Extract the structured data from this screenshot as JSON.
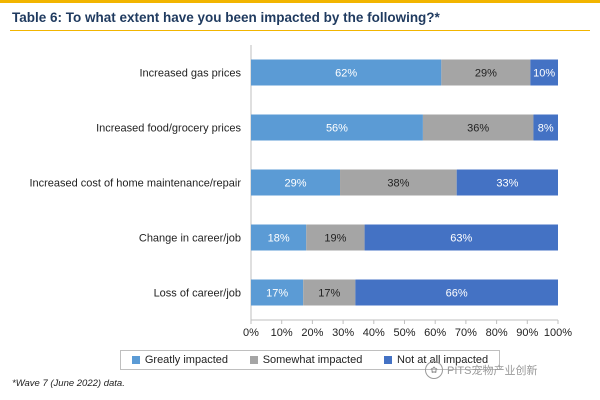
{
  "title": "Table 6: To what extent have you been impacted by the following?*",
  "footnote": "*Wave 7 (June 2022) data.",
  "watermark": {
    "text": "PITS宠物产业创新",
    "icon": "wechat-icon"
  },
  "colors": {
    "greatly": "#5b9bd5",
    "somewhat": "#a5a5a5",
    "not_at_all": "#4472c4",
    "accent": "#f2b500",
    "title": "#1f3a5f"
  },
  "chart_data": {
    "type": "bar",
    "orientation": "horizontal",
    "stacked": true,
    "title": "Table 6: To what extent have you been impacted by the following?*",
    "categories": [
      "Increased gas prices",
      "Increased food/grocery prices",
      "Increased cost of home maintenance/repair",
      "Change in career/job",
      "Loss of career/job"
    ],
    "series": [
      {
        "name": "Greatly impacted",
        "values": [
          62,
          56,
          29,
          18,
          17
        ]
      },
      {
        "name": "Somewhat impacted",
        "values": [
          29,
          36,
          38,
          19,
          17
        ]
      },
      {
        "name": "Not at all impacted",
        "values": [
          10,
          8,
          33,
          63,
          66
        ]
      }
    ],
    "xlim": [
      0,
      100
    ],
    "x_ticks": [
      "0%",
      "10%",
      "20%",
      "30%",
      "40%",
      "50%",
      "60%",
      "70%",
      "80%",
      "90%",
      "100%"
    ],
    "value_suffix": "%",
    "grid": false,
    "legend_position": "bottom"
  }
}
